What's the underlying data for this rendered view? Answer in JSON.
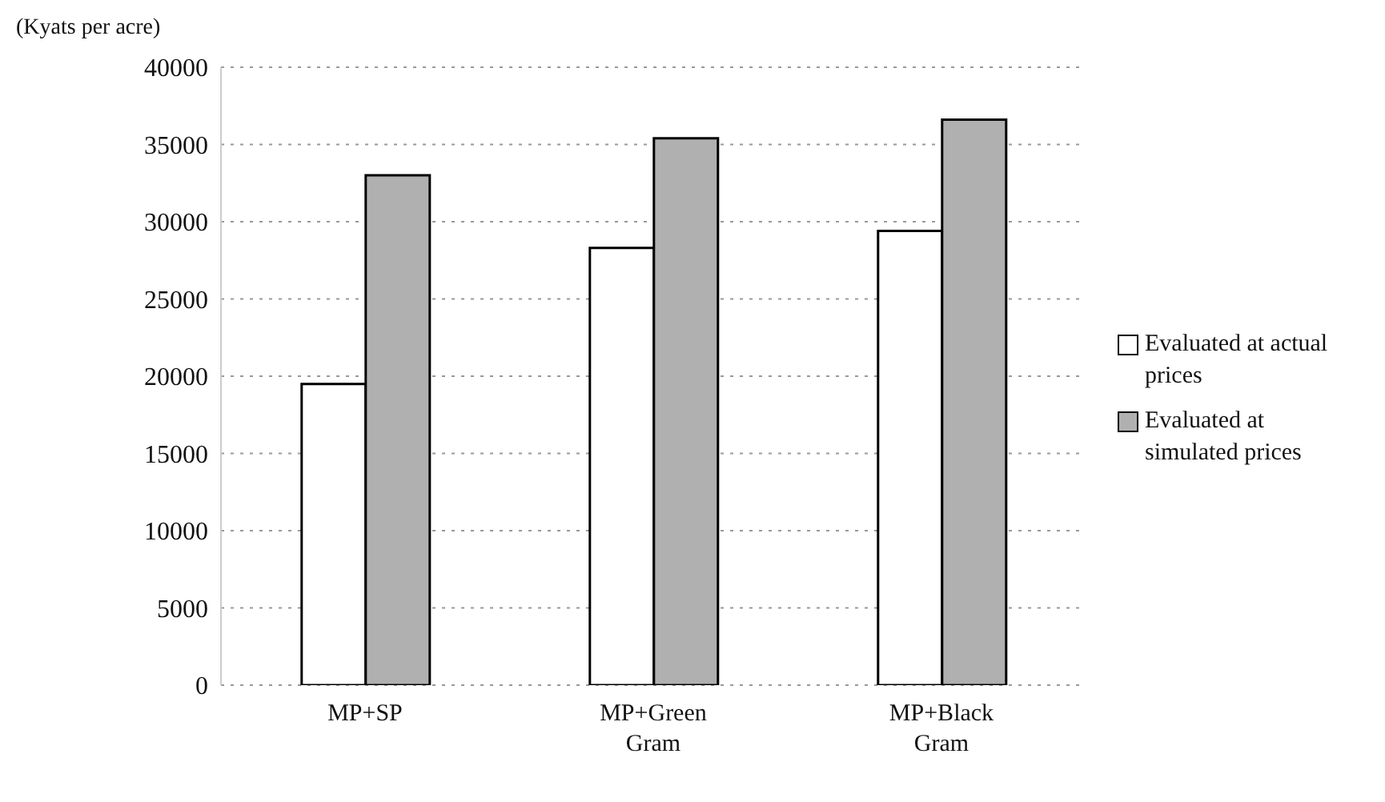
{
  "chart_data": {
    "type": "bar",
    "ylabel": "(Kyats per acre)",
    "categories": [
      "MP+SP",
      "MP+Green Gram",
      "MP+Black Gram"
    ],
    "series": [
      {
        "name": "Evaluated at actual prices",
        "color": "#ffffff",
        "values": [
          19500,
          28300,
          29400
        ]
      },
      {
        "name": "Evaluated at simulated prices",
        "color": "#b0b0b0",
        "values": [
          33000,
          35400,
          36600
        ]
      }
    ],
    "ylim": [
      0,
      40000
    ],
    "yticks": [
      0,
      5000,
      10000,
      15000,
      20000,
      25000,
      30000,
      35000,
      40000
    ],
    "grid": "y",
    "legend": "right"
  }
}
